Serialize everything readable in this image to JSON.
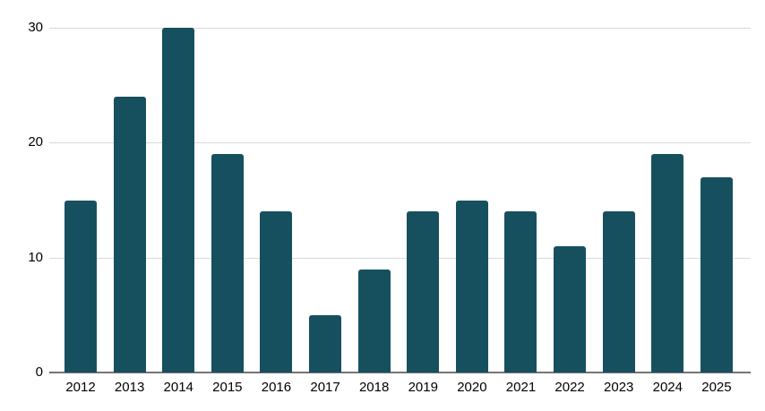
{
  "chart_data": {
    "type": "bar",
    "title": "",
    "xlabel": "",
    "ylabel": "",
    "categories": [
      "2012",
      "2013",
      "2014",
      "2015",
      "2016",
      "2017",
      "2018",
      "2019",
      "2020",
      "2021",
      "2022",
      "2023",
      "2024",
      "2025"
    ],
    "values": [
      15,
      24,
      30,
      19,
      14,
      5,
      9,
      14,
      15,
      14,
      11,
      14,
      19,
      17
    ],
    "ylim": [
      0,
      30
    ],
    "yticks": [
      0,
      10,
      20,
      30
    ],
    "grid": "horizontal",
    "legend": "none",
    "colors": {
      "bar": "#16505e",
      "gridline": "#d9d9d9",
      "axis_line": "#757575",
      "tick_text": "#000000",
      "background": "#ffffff"
    }
  }
}
